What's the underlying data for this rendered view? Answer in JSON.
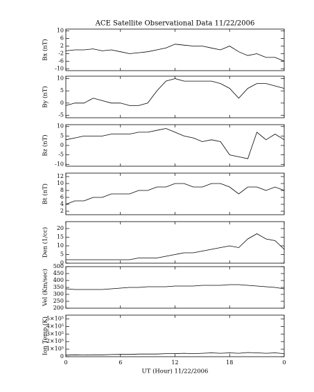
{
  "chart_data": [
    {
      "type": "line",
      "title": "ACE Satellite Observational Data   11/22/2006",
      "ylabel": "Bx (nT)",
      "ylim": [
        -11,
        11
      ],
      "yticks": [
        10,
        6,
        2,
        -2,
        -6,
        -10
      ],
      "series": [
        {
          "color": "#000000",
          "values": [
            -0.5,
            0,
            0,
            0.5,
            -0.5,
            0,
            -1,
            -2,
            -1.5,
            -1,
            0,
            1,
            3,
            2.5,
            2,
            2,
            1,
            0,
            2,
            -1,
            -3,
            -2,
            -4,
            -4,
            -6
          ]
        }
      ]
    },
    {
      "type": "line",
      "ylabel": "By (nT)",
      "ylim": [
        -6,
        11
      ],
      "yticks": [
        10,
        5,
        0,
        -5
      ],
      "series": [
        {
          "color": "#000000",
          "values": [
            -1,
            0,
            0,
            2,
            1,
            0,
            0,
            -1,
            -1,
            0,
            5,
            9,
            10,
            9,
            9,
            9,
            9,
            8,
            6,
            2,
            6,
            8,
            8,
            7,
            6
          ]
        }
      ]
    },
    {
      "type": "line",
      "ylabel": "Bz (nT)",
      "ylim": [
        -11,
        11
      ],
      "yticks": [
        10,
        5,
        0,
        -5,
        -10
      ],
      "series": [
        {
          "color": "#000000",
          "values": [
            3,
            4,
            5,
            5,
            5,
            6,
            6,
            6,
            7,
            7,
            8,
            9,
            7,
            5,
            4,
            2,
            3,
            2,
            -5,
            -6,
            -7,
            7,
            3,
            6,
            3
          ]
        }
      ]
    },
    {
      "type": "line",
      "ylabel": "Bt (nT)",
      "ylim": [
        1,
        13
      ],
      "yticks": [
        12,
        10,
        8,
        6,
        4,
        2
      ],
      "series": [
        {
          "color": "#000000",
          "values": [
            4,
            5,
            5,
            6,
            6,
            7,
            7,
            7,
            8,
            8,
            9,
            9,
            10,
            10,
            9,
            9,
            10,
            10,
            9,
            7,
            9,
            9,
            8,
            9,
            8
          ]
        }
      ]
    },
    {
      "type": "line",
      "ylabel": "Den (1/cc)",
      "ylim": [
        0,
        24
      ],
      "yticks": [
        20,
        15,
        10,
        5,
        0
      ],
      "series": [
        {
          "color": "#000000",
          "values": [
            2,
            2,
            2,
            2,
            2,
            2,
            2,
            2,
            3,
            3,
            3,
            4,
            5,
            6,
            6,
            7,
            8,
            9,
            10,
            9,
            14,
            17,
            14,
            13,
            8
          ]
        }
      ]
    },
    {
      "type": "line",
      "ylabel": "Vel (Km/sec)",
      "ylim": [
        200,
        500
      ],
      "yticks": [
        500,
        450,
        400,
        350,
        300,
        250,
        200
      ],
      "series": [
        {
          "color": "#000000",
          "values": [
            340,
            335,
            335,
            335,
            335,
            340,
            345,
            350,
            350,
            355,
            355,
            355,
            360,
            360,
            360,
            365,
            365,
            365,
            370,
            370,
            365,
            360,
            355,
            350,
            340
          ]
        }
      ]
    },
    {
      "type": "line",
      "ylabel": "Ion Temp (K)",
      "xlabel": "UT (Hour)   11/22/2006",
      "ylim": [
        0,
        550000
      ],
      "yticks": [
        {
          "value": 500000,
          "label": "5×10⁵"
        },
        {
          "value": 400000,
          "label": "4×10⁵"
        },
        {
          "value": 300000,
          "label": "3×10⁵"
        },
        {
          "value": 200000,
          "label": "2×10⁵"
        },
        {
          "value": 100000,
          "label": "1×10⁵"
        },
        0
      ],
      "x": [
        0,
        1,
        2,
        3,
        4,
        5,
        6,
        7,
        8,
        9,
        10,
        11,
        12,
        13,
        14,
        15,
        16,
        17,
        18,
        19,
        20,
        21,
        22,
        23,
        24
      ],
      "xlim": [
        0,
        24
      ],
      "xticks": [
        0,
        6,
        12,
        18,
        {
          "value": 24,
          "label": "0"
        }
      ],
      "series": [
        {
          "color": "#000000",
          "values": [
            20000,
            25000,
            22000,
            25000,
            25000,
            28000,
            30000,
            30000,
            35000,
            35000,
            35000,
            40000,
            40000,
            45000,
            40000,
            45000,
            50000,
            45000,
            50000,
            45000,
            55000,
            50000,
            45000,
            50000,
            40000
          ]
        }
      ]
    }
  ]
}
